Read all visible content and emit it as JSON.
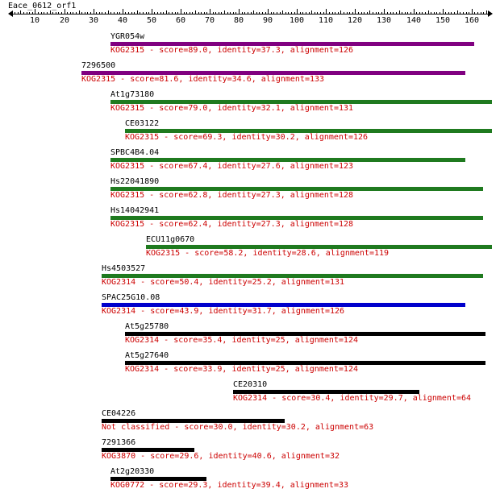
{
  "title": "Eace_0612_orf1",
  "axis": {
    "min": 1,
    "max": 167,
    "tick_labels": [
      10,
      20,
      30,
      40,
      50,
      60,
      70,
      80,
      90,
      100,
      110,
      120,
      130,
      140,
      150,
      160
    ]
  },
  "colors": {
    "label": "#000000",
    "description": "#cc0000",
    "KOG2315": [
      "#800080",
      "#1f7a1f"
    ],
    "KOG2314": [
      "#1f7a1f",
      "#0000cc",
      "#000000"
    ],
    "other": "#000000"
  },
  "hits": [
    {
      "name": "YGR054w",
      "kog": "KOG2315",
      "score": "89.0",
      "identity": "37.3",
      "alignment": "126",
      "start": 36,
      "end": 161,
      "color": "#800080",
      "desc": "KOG2315 - score=89.0, identity=37.3, alignment=126"
    },
    {
      "name": "7296500",
      "kog": "KOG2315",
      "score": "81.6",
      "identity": "34.6",
      "alignment": "133",
      "start": 26,
      "end": 158,
      "color": "#800080",
      "desc": "KOG2315 - score=81.6, identity=34.6, alignment=133"
    },
    {
      "name": "At1g73180",
      "kog": "KOG2315",
      "score": "79.0",
      "identity": "32.1",
      "alignment": "131",
      "start": 36,
      "end": 167,
      "color": "#1f7a1f",
      "desc": "KOG2315 - score=79.0, identity=32.1, alignment=131"
    },
    {
      "name": "CE03122",
      "kog": "KOG2315",
      "score": "69.3",
      "identity": "30.2",
      "alignment": "126",
      "start": 41,
      "end": 167,
      "color": "#1f7a1f",
      "desc": "KOG2315 - score=69.3, identity=30.2, alignment=126"
    },
    {
      "name": "SPBC4B4.04",
      "kog": "KOG2315",
      "score": "67.4",
      "identity": "27.6",
      "alignment": "123",
      "start": 36,
      "end": 158,
      "color": "#1f7a1f",
      "desc": "KOG2315 - score=67.4, identity=27.6, alignment=123"
    },
    {
      "name": "Hs22041890",
      "kog": "KOG2315",
      "score": "62.8",
      "identity": "27.3",
      "alignment": "128",
      "start": 36,
      "end": 164,
      "color": "#1f7a1f",
      "desc": "KOG2315 - score=62.8, identity=27.3, alignment=128"
    },
    {
      "name": "Hs14042941",
      "kog": "KOG2315",
      "score": "62.4",
      "identity": "27.3",
      "alignment": "128",
      "start": 36,
      "end": 164,
      "color": "#1f7a1f",
      "desc": "KOG2315 - score=62.4, identity=27.3, alignment=128"
    },
    {
      "name": "ECU11g0670",
      "kog": "KOG2315",
      "score": "58.2",
      "identity": "28.6",
      "alignment": "119",
      "start": 48,
      "end": 167,
      "color": "#1f7a1f",
      "desc": "KOG2315 - score=58.2, identity=28.6, alignment=119"
    },
    {
      "name": "Hs4503527",
      "kog": "KOG2314",
      "score": "50.4",
      "identity": "25.2",
      "alignment": "131",
      "start": 33,
      "end": 164,
      "color": "#1f7a1f",
      "desc": "KOG2314 - score=50.4, identity=25.2, alignment=131"
    },
    {
      "name": "SPAC25G10.08",
      "kog": "KOG2314",
      "score": "43.9",
      "identity": "31.7",
      "alignment": "126",
      "start": 33,
      "end": 158,
      "color": "#0000cc",
      "desc": "KOG2314 - score=43.9, identity=31.7, alignment=126"
    },
    {
      "name": "At5g25780",
      "kog": "KOG2314",
      "score": "35.4",
      "identity": "25",
      "alignment": "124",
      "start": 41,
      "end": 165,
      "color": "#000000",
      "desc": "KOG2314 - score=35.4, identity=25, alignment=124"
    },
    {
      "name": "At5g27640",
      "kog": "KOG2314",
      "score": "33.9",
      "identity": "25",
      "alignment": "124",
      "start": 41,
      "end": 165,
      "color": "#000000",
      "desc": "KOG2314 - score=33.9, identity=25, alignment=124"
    },
    {
      "name": "CE20310",
      "kog": "KOG2314",
      "score": "30.4",
      "identity": "29.7",
      "alignment": "64",
      "start": 78,
      "end": 142,
      "color": "#000000",
      "desc": "KOG2314 - score=30.4, identity=29.7, alignment=64"
    },
    {
      "name": "CE04226",
      "kog": "Not classified",
      "score": "30.0",
      "identity": "30.2",
      "alignment": "63",
      "start": 33,
      "end": 96,
      "color": "#000000",
      "desc": "Not classified - score=30.0, identity=30.2, alignment=63"
    },
    {
      "name": "7291366",
      "kog": "KOG3870",
      "score": "29.6",
      "identity": "40.6",
      "alignment": "32",
      "start": 33,
      "end": 65,
      "color": "#000000",
      "desc": "KOG3870 - score=29.6, identity=40.6, alignment=32"
    },
    {
      "name": "At2g20330",
      "kog": "KOG0772",
      "score": "29.3",
      "identity": "39.4",
      "alignment": "33",
      "start": 36,
      "end": 69,
      "color": "#000000",
      "desc": "KOG0772 - score=29.3, identity=39.4, alignment=33"
    }
  ]
}
